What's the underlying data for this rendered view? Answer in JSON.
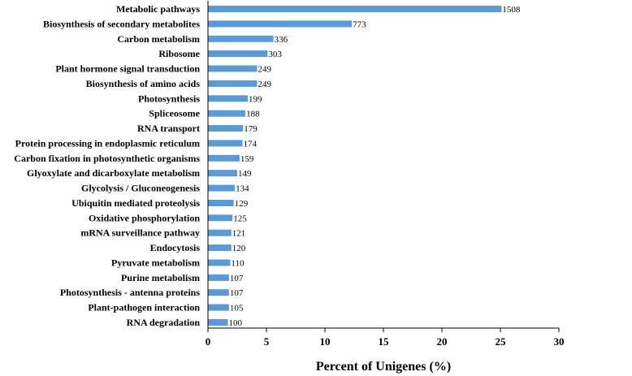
{
  "chart_data": {
    "type": "bar",
    "orientation": "horizontal",
    "categories": [
      "Metabolic pathways",
      "Biosynthesis of secondary metabolites",
      "Carbon metabolism",
      "Ribosome",
      "Plant hormone signal transduction",
      "Biosynthesis of amino acids",
      "Photosynthesis",
      "Spliceosome",
      "RNA transport",
      "Protein processing in endoplasmic reticulum",
      "Carbon fixation in photosynthetic organisms",
      "Glyoxylate and dicarboxylate metabolism",
      "Glycolysis / Gluconeogenesis",
      "Ubiquitin mediated proteolysis",
      "Oxidative phosphorylation",
      "mRNA surveillance pathway",
      "Endocytosis",
      "Pyruvate metabolism",
      "Purine metabolism",
      "Photosynthesis - antenna proteins",
      "Plant-pathogen interaction",
      "RNA degradation"
    ],
    "values": [
      25.1,
      12.3,
      5.6,
      5.1,
      4.2,
      4.2,
      3.4,
      3.2,
      3.0,
      2.95,
      2.7,
      2.5,
      2.3,
      2.2,
      2.1,
      2.0,
      2.0,
      1.9,
      1.8,
      1.8,
      1.8,
      1.7
    ],
    "data_labels": [
      "1508",
      "773",
      "336",
      "303",
      "249",
      "249",
      "199",
      "188",
      "179",
      "174",
      "159",
      "149",
      "134",
      "129",
      "125",
      "121",
      "120",
      "110",
      "107",
      "107",
      "105",
      "100"
    ],
    "xlabel": "Percent of Unigenes (%)",
    "ylabel": "",
    "xlim": [
      0,
      30
    ],
    "xticks": [
      "0",
      "5",
      "10",
      "15",
      "20",
      "25",
      "30"
    ],
    "bar_color": "#5B9BD5",
    "grid": false,
    "legend": "none"
  }
}
